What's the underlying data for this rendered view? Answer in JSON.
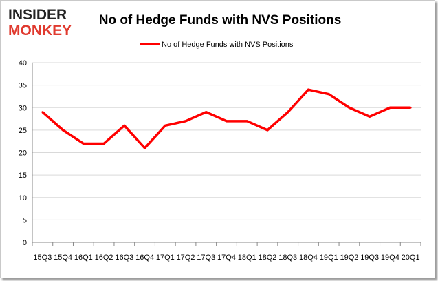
{
  "logo": {
    "line1": "INSIDER",
    "line2": "MONKEY"
  },
  "chart_data": {
    "type": "line",
    "title": "No of Hedge Funds with NVS Positions",
    "categories": [
      "15Q3",
      "15Q4",
      "16Q1",
      "16Q2",
      "16Q3",
      "16Q4",
      "17Q1",
      "17Q2",
      "17Q3",
      "17Q4",
      "18Q1",
      "18Q2",
      "18Q3",
      "18Q4",
      "19Q1",
      "19Q2",
      "19Q3",
      "19Q4",
      "20Q1"
    ],
    "series": [
      {
        "name": "No of Hedge Funds with NVS Positions",
        "values": [
          29,
          25,
          22,
          22,
          26,
          21,
          26,
          27,
          29,
          27,
          27,
          25,
          29,
          34,
          33,
          30,
          28,
          30,
          30
        ],
        "color": "#ff0000"
      }
    ],
    "ylim": [
      0,
      40
    ],
    "yticks": [
      0,
      5,
      10,
      15,
      20,
      25,
      30,
      35,
      40
    ],
    "grid": true,
    "legend": "top-center"
  }
}
